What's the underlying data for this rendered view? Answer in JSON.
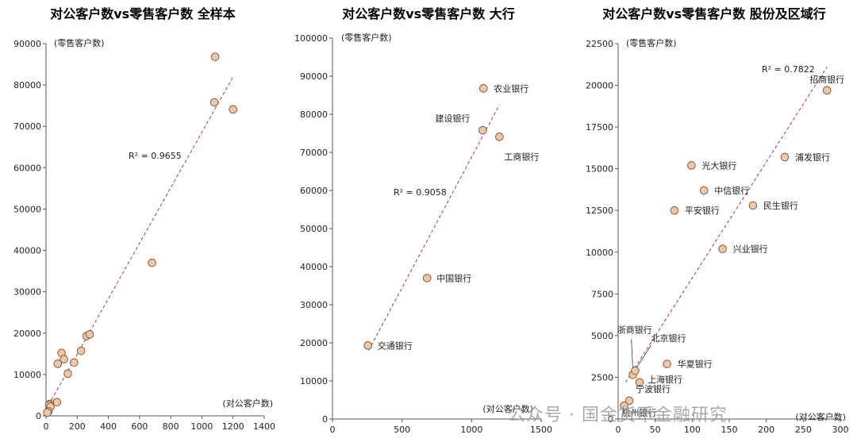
{
  "chart_data": [
    {
      "type": "scatter",
      "title": "对公客户数vs零售客户数 全样本",
      "ylabel": "(零售客户数)",
      "xlabel": "(对公客户数)",
      "xlim": [
        0,
        1400
      ],
      "ylim": [
        0,
        90000
      ],
      "xticks": [
        0,
        200,
        400,
        600,
        800,
        1000,
        1200,
        1400
      ],
      "yticks": [
        0,
        10000,
        20000,
        30000,
        40000,
        50000,
        60000,
        70000,
        80000,
        90000
      ],
      "r2_label": "R² = 0.9655",
      "trend": [
        [
          0,
          1500
        ],
        [
          1200,
          82000
        ]
      ],
      "points": [
        {
          "x": 1085,
          "y": 86800
        },
        {
          "x": 1080,
          "y": 75800
        },
        {
          "x": 1200,
          "y": 74100
        },
        {
          "x": 680,
          "y": 37000
        },
        {
          "x": 260,
          "y": 19300
        },
        {
          "x": 280,
          "y": 19700
        },
        {
          "x": 225,
          "y": 15700
        },
        {
          "x": 100,
          "y": 15200
        },
        {
          "x": 115,
          "y": 13700
        },
        {
          "x": 180,
          "y": 12900
        },
        {
          "x": 75,
          "y": 12600
        },
        {
          "x": 140,
          "y": 10200
        },
        {
          "x": 70,
          "y": 3300
        },
        {
          "x": 25,
          "y": 2900
        },
        {
          "x": 20,
          "y": 2600
        },
        {
          "x": 28,
          "y": 2200
        },
        {
          "x": 15,
          "y": 1100
        },
        {
          "x": 8,
          "y": 800
        }
      ]
    },
    {
      "type": "scatter",
      "title": "对公客户数vs零售客户数 大行",
      "ylabel": "(零售客户数)",
      "xlabel": "(对公客户数)",
      "xlim": [
        0,
        1500
      ],
      "ylim": [
        0,
        100000
      ],
      "xticks": [
        0,
        500,
        1000,
        1500
      ],
      "yticks": [
        0,
        10000,
        20000,
        30000,
        40000,
        50000,
        60000,
        70000,
        80000,
        90000,
        100000
      ],
      "r2_label": "R² = 0.9058",
      "trend": [
        [
          260,
          18000
        ],
        [
          1200,
          82500
        ]
      ],
      "points": [
        {
          "x": 1085,
          "y": 86800,
          "label": "农业银行"
        },
        {
          "x": 1080,
          "y": 75800,
          "label": "建设银行"
        },
        {
          "x": 1200,
          "y": 74100,
          "label": "工商银行"
        },
        {
          "x": 680,
          "y": 37000,
          "label": "中国银行"
        },
        {
          "x": 255,
          "y": 19300,
          "label": "交通银行"
        }
      ]
    },
    {
      "type": "scatter",
      "title": "对公客户数vs零售客户数 股份及区域行",
      "ylabel": "(零售客户数)",
      "xlabel": "(对公客户数)",
      "xlim": [
        0,
        300
      ],
      "ylim": [
        0,
        22500
      ],
      "xticks": [
        0,
        50,
        100,
        150,
        200,
        250,
        300
      ],
      "yticks": [
        0,
        2500,
        5000,
        7500,
        10000,
        12500,
        15000,
        17500,
        20000,
        22500
      ],
      "r2_label": "R² = 0.7822",
      "trend": [
        [
          10,
          2200
        ],
        [
          282,
          21100
        ]
      ],
      "points": [
        {
          "x": 282,
          "y": 19700,
          "label": "招商银行"
        },
        {
          "x": 225,
          "y": 15700,
          "label": "浦发银行"
        },
        {
          "x": 99,
          "y": 15200,
          "label": "光大银行"
        },
        {
          "x": 116,
          "y": 13700,
          "label": "中信银行"
        },
        {
          "x": 76,
          "y": 12500,
          "label": "平安银行"
        },
        {
          "x": 182,
          "y": 12800,
          "label": "民生银行"
        },
        {
          "x": 141,
          "y": 10200,
          "label": "兴业银行"
        },
        {
          "x": 20,
          "y": 2650,
          "label": "浙商银行"
        },
        {
          "x": 23,
          "y": 2900,
          "label": "北京银行"
        },
        {
          "x": 66,
          "y": 3300,
          "label": "华夏银行"
        },
        {
          "x": 29,
          "y": 2200,
          "label": "上海银行"
        },
        {
          "x": 15,
          "y": 1100,
          "label": "宁波银行"
        },
        {
          "x": 8,
          "y": 800,
          "label": "杭州银行"
        }
      ]
    }
  ],
  "watermark": "公众号 · 国金货币金融研究"
}
